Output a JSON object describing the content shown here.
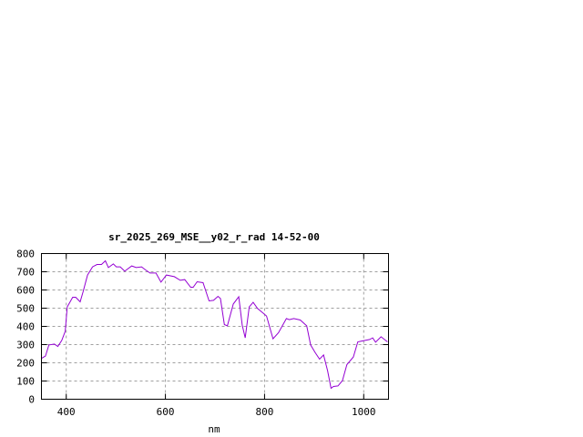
{
  "chart_data": {
    "type": "line",
    "title": "sr_2025_269_MSE__y02_r_rad 14-52-00",
    "xlabel": "nm",
    "ylabel": "",
    "xlim": [
      350,
      1050
    ],
    "ylim": [
      0,
      800
    ],
    "xticks": [
      400,
      600,
      800,
      1000
    ],
    "yticks": [
      0,
      100,
      200,
      300,
      400,
      500,
      600,
      700,
      800
    ],
    "grid": true,
    "legend": "none",
    "line_color": "#9400d3",
    "series": [
      {
        "x": [
          350,
          358,
          365,
          376,
          383,
          391,
          398,
          402,
          413,
          419,
          428,
          434,
          443,
          453,
          462,
          471,
          479,
          485,
          495,
          501,
          509,
          518,
          532,
          541,
          552,
          560,
          569,
          581,
          591,
          602,
          618,
          630,
          639,
          651,
          656,
          664,
          676,
          688,
          697,
          706,
          711,
          719,
          725,
          737,
          748,
          755,
          761,
          769,
          777,
          786,
          797,
          804,
          817,
          828,
          844,
          850,
          859,
          872,
          885,
          893,
          902,
          911,
          919,
          927,
          934,
          939,
          948,
          957,
          966,
          979,
          988,
          997,
          1003,
          1012,
          1018,
          1024,
          1035,
          1040,
          1048
        ],
        "y": [
          224,
          237,
          298,
          303,
          290,
          323,
          373,
          507,
          560,
          560,
          535,
          590,
          682,
          727,
          740,
          740,
          760,
          723,
          743,
          727,
          727,
          703,
          732,
          723,
          727,
          710,
          693,
          693,
          643,
          682,
          673,
          653,
          657,
          615,
          615,
          645,
          640,
          540,
          543,
          565,
          553,
          410,
          403,
          523,
          563,
          407,
          337,
          507,
          532,
          498,
          473,
          457,
          332,
          365,
          443,
          437,
          443,
          435,
          403,
          298,
          257,
          220,
          243,
          157,
          60,
          70,
          73,
          102,
          190,
          232,
          315,
          320,
          323,
          328,
          337,
          313,
          343,
          332,
          315
        ]
      }
    ]
  }
}
